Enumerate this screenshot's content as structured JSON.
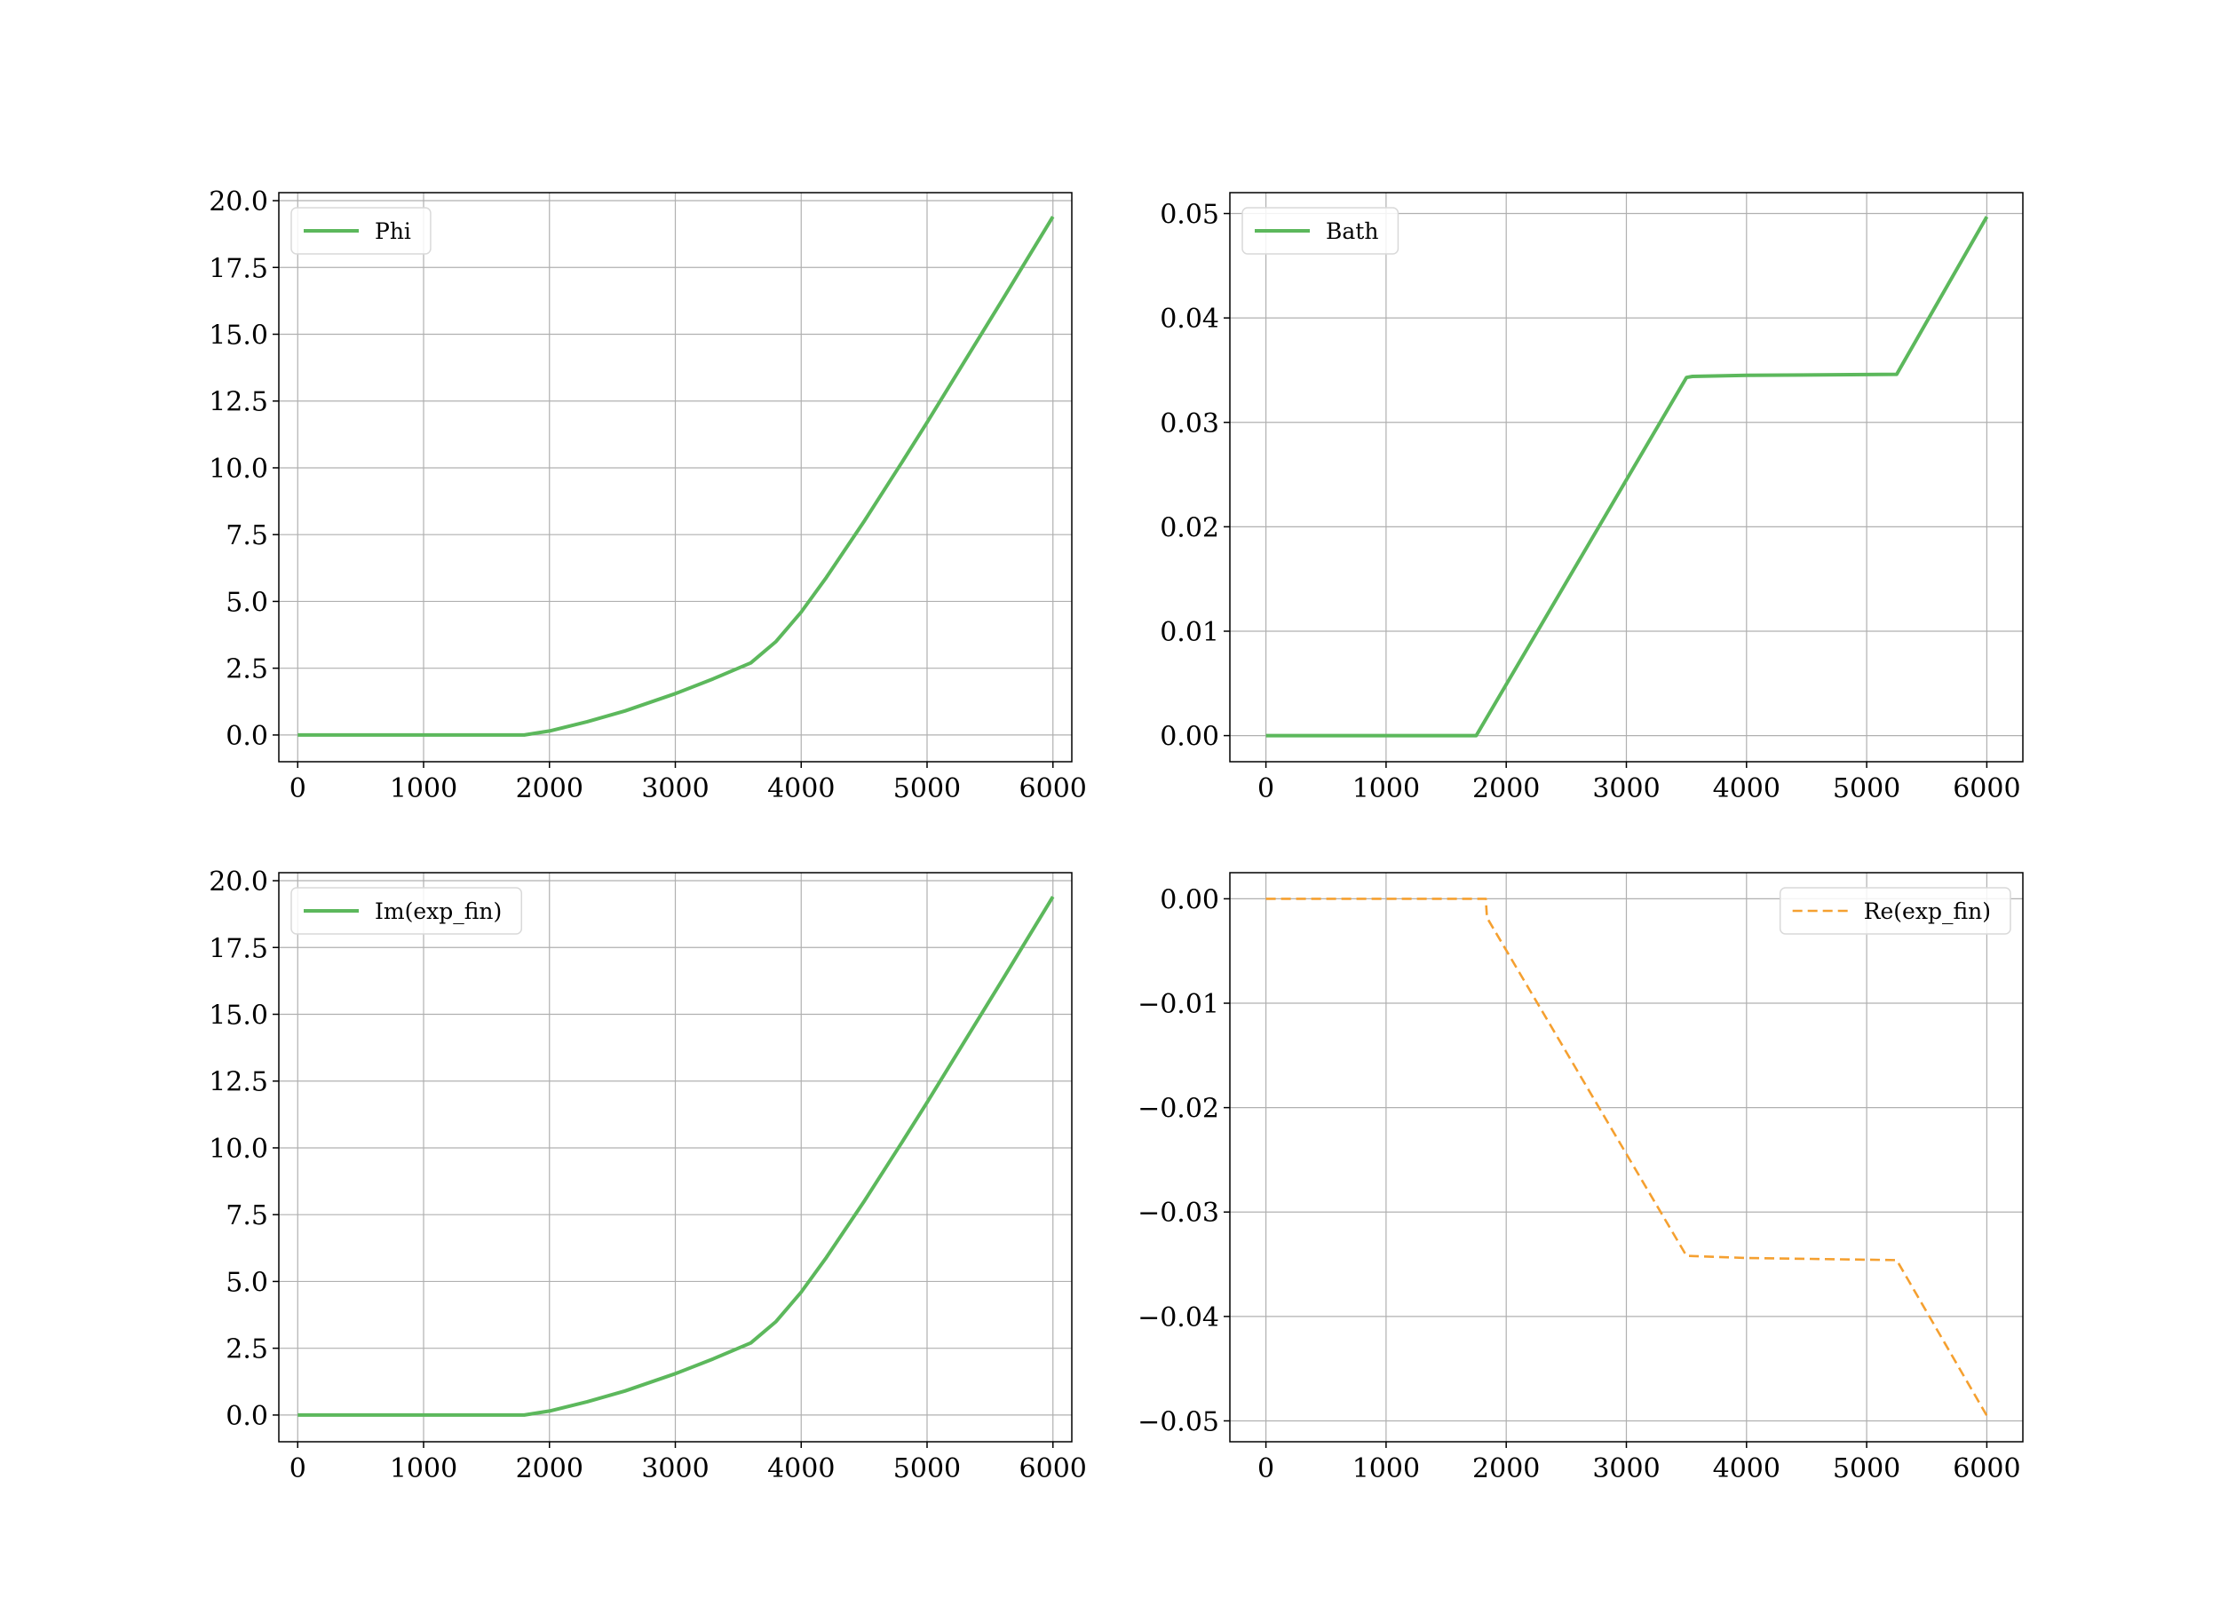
{
  "chart_data": [
    {
      "type": "line",
      "legend_location": "upper left",
      "grid": true,
      "xlim": [
        -150,
        6150
      ],
      "ylim": [
        -1.0,
        20.3
      ],
      "xticks": [
        0,
        1000,
        2000,
        3000,
        4000,
        5000,
        6000
      ],
      "xtick_labels": [
        "0",
        "1000",
        "2000",
        "3000",
        "4000",
        "5000",
        "6000"
      ],
      "yticks": [
        0.0,
        2.5,
        5.0,
        7.5,
        10.0,
        12.5,
        15.0,
        17.5,
        20.0
      ],
      "ytick_labels": [
        "0.0",
        "2.5",
        "5.0",
        "7.5",
        "10.0",
        "12.5",
        "15.0",
        "17.5",
        "20.0"
      ],
      "series": [
        {
          "name": "Phi",
          "color": "#5cb85c",
          "style": "solid",
          "x": [
            0,
            1000,
            1800,
            2000,
            2300,
            2600,
            3000,
            3300,
            3600,
            3800,
            4000,
            4200,
            4500,
            4800,
            5000,
            5300,
            5600,
            6000
          ],
          "y": [
            0,
            0,
            0,
            0.15,
            0.5,
            0.9,
            1.55,
            2.1,
            2.7,
            3.5,
            4.6,
            5.9,
            8.0,
            10.2,
            11.7,
            14.0,
            16.3,
            19.4
          ]
        }
      ]
    },
    {
      "type": "line",
      "legend_location": "upper left",
      "grid": true,
      "xlim": [
        -300,
        6300
      ],
      "ylim": [
        -0.0025,
        0.052
      ],
      "xticks": [
        0,
        1000,
        2000,
        3000,
        4000,
        5000,
        6000
      ],
      "xtick_labels": [
        "0",
        "1000",
        "2000",
        "3000",
        "4000",
        "5000",
        "6000"
      ],
      "yticks": [
        0.0,
        0.01,
        0.02,
        0.03,
        0.04,
        0.05
      ],
      "ytick_labels": [
        "0.00",
        "0.01",
        "0.02",
        "0.03",
        "0.04",
        "0.05"
      ],
      "series": [
        {
          "name": "Bath",
          "color": "#5cb85c",
          "style": "solid",
          "x": [
            0,
            1750,
            3500,
            3550,
            4000,
            5250,
            6000
          ],
          "y": [
            0,
            0,
            0.0343,
            0.0344,
            0.0345,
            0.0346,
            0.0497
          ]
        }
      ]
    },
    {
      "type": "line",
      "legend_location": "upper left",
      "grid": true,
      "xlim": [
        -150,
        6150
      ],
      "ylim": [
        -1.0,
        20.3
      ],
      "xticks": [
        0,
        1000,
        2000,
        3000,
        4000,
        5000,
        6000
      ],
      "xtick_labels": [
        "0",
        "1000",
        "2000",
        "3000",
        "4000",
        "5000",
        "6000"
      ],
      "yticks": [
        0.0,
        2.5,
        5.0,
        7.5,
        10.0,
        12.5,
        15.0,
        17.5,
        20.0
      ],
      "ytick_labels": [
        "0.0",
        "2.5",
        "5.0",
        "7.5",
        "10.0",
        "12.5",
        "15.0",
        "17.5",
        "20.0"
      ],
      "series": [
        {
          "name": "Im(exp_fin)",
          "color": "#5cb85c",
          "style": "solid",
          "x": [
            0,
            1000,
            1800,
            2000,
            2300,
            2600,
            3000,
            3300,
            3600,
            3800,
            4000,
            4200,
            4500,
            4800,
            5000,
            5300,
            5600,
            6000
          ],
          "y": [
            0,
            0,
            0,
            0.15,
            0.5,
            0.9,
            1.55,
            2.1,
            2.7,
            3.5,
            4.6,
            5.9,
            8.0,
            10.2,
            11.7,
            14.0,
            16.3,
            19.4
          ]
        }
      ]
    },
    {
      "type": "line",
      "legend_location": "upper right",
      "grid": true,
      "xlim": [
        -300,
        6300
      ],
      "ylim": [
        -0.052,
        0.0025
      ],
      "xticks": [
        0,
        1000,
        2000,
        3000,
        4000,
        5000,
        6000
      ],
      "xtick_labels": [
        "0",
        "1000",
        "2000",
        "3000",
        "4000",
        "5000",
        "6000"
      ],
      "yticks": [
        0.0,
        -0.01,
        -0.02,
        -0.03,
        -0.04,
        -0.05
      ],
      "ytick_labels": [
        "0.00",
        "−0.01",
        "−0.02",
        "−0.03",
        "−0.04",
        "−0.05"
      ],
      "series": [
        {
          "name": "Re(exp_fin)",
          "color": "#f5a030",
          "style": "dashed",
          "x": [
            0,
            1830,
            1840,
            3500,
            4000,
            5250,
            6000
          ],
          "y": [
            0,
            0,
            -0.0018,
            -0.0342,
            -0.0344,
            -0.0346,
            -0.0495
          ]
        }
      ]
    }
  ]
}
